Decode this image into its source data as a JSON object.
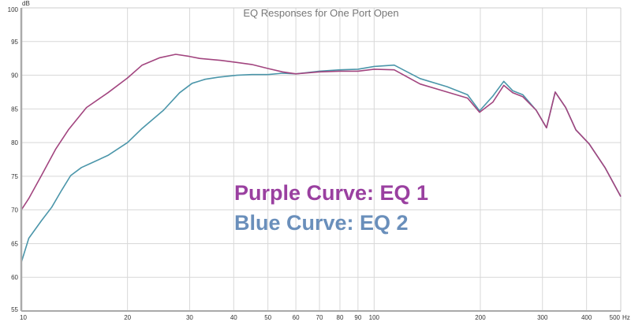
{
  "chart_data": {
    "type": "line",
    "title": "EQ Responses for One Port Open",
    "ylabel": "dB",
    "xlabel_unit": "Hz",
    "xscale": "log",
    "xlim": [
      10,
      500
    ],
    "ylim": [
      55,
      100
    ],
    "grid": true,
    "yticks": [
      55,
      60,
      65,
      70,
      75,
      80,
      85,
      90,
      95,
      100
    ],
    "xticks": [
      10,
      20,
      30,
      40,
      50,
      60,
      70,
      80,
      90,
      100,
      200,
      300,
      400,
      500
    ],
    "xtick_labels": [
      "10",
      "20",
      "30",
      "40",
      "50",
      "60",
      "70",
      "80",
      "90",
      "100",
      "200",
      "300",
      "400",
      "500"
    ],
    "annotations": [
      "Purple Curve: EQ 1",
      "Blue Curve: EQ 2"
    ],
    "series": [
      {
        "name": "EQ 1",
        "color": "#a2457f",
        "x": [
          10,
          10.5,
          11.4,
          12.5,
          13.6,
          15.3,
          17.6,
          20,
          22,
          24.7,
          27.4,
          29.9,
          32,
          36.8,
          40.8,
          45,
          50,
          55,
          60,
          70,
          80,
          90,
          100,
          114,
          135,
          161,
          184,
          199,
          217,
          233,
          247,
          264,
          288,
          308,
          326,
          349,
          373,
          407,
          451,
          500
        ],
        "y": [
          70.0,
          71.7,
          75.1,
          79.0,
          81.9,
          85.2,
          87.4,
          89.6,
          91.5,
          92.6,
          93.1,
          92.8,
          92.5,
          92.2,
          91.9,
          91.6,
          91.0,
          90.5,
          90.2,
          90.5,
          90.6,
          90.6,
          90.9,
          90.8,
          88.7,
          87.5,
          86.6,
          84.5,
          86.0,
          88.5,
          87.4,
          86.8,
          84.8,
          82.2,
          87.5,
          85.2,
          81.9,
          79.8,
          76.3,
          72.0
        ]
      },
      {
        "name": "EQ 2",
        "color": "#4b96aa",
        "x": [
          10,
          10.5,
          11.4,
          12.2,
          13.0,
          13.8,
          14.8,
          15.7,
          17.6,
          20,
          22,
          25.3,
          28.1,
          30.5,
          33.2,
          36.2,
          40.8,
          45,
          50,
          55,
          60,
          70,
          80,
          90,
          100,
          114,
          135,
          161,
          184,
          199,
          217,
          233,
          247,
          264,
          288,
          308,
          326,
          349,
          373,
          407,
          451,
          500
        ],
        "y": [
          62.2,
          65.8,
          68.4,
          70.4,
          72.9,
          75.1,
          76.3,
          76.9,
          78.1,
          80.0,
          82.1,
          84.8,
          87.4,
          88.8,
          89.4,
          89.7,
          90.0,
          90.1,
          90.1,
          90.3,
          90.2,
          90.6,
          90.8,
          90.9,
          91.3,
          91.5,
          89.5,
          88.3,
          87.1,
          84.7,
          86.9,
          89.1,
          87.7,
          87.1,
          84.8,
          82.2,
          87.5,
          85.2,
          81.9,
          79.8,
          76.3,
          72.0
        ]
      }
    ]
  }
}
